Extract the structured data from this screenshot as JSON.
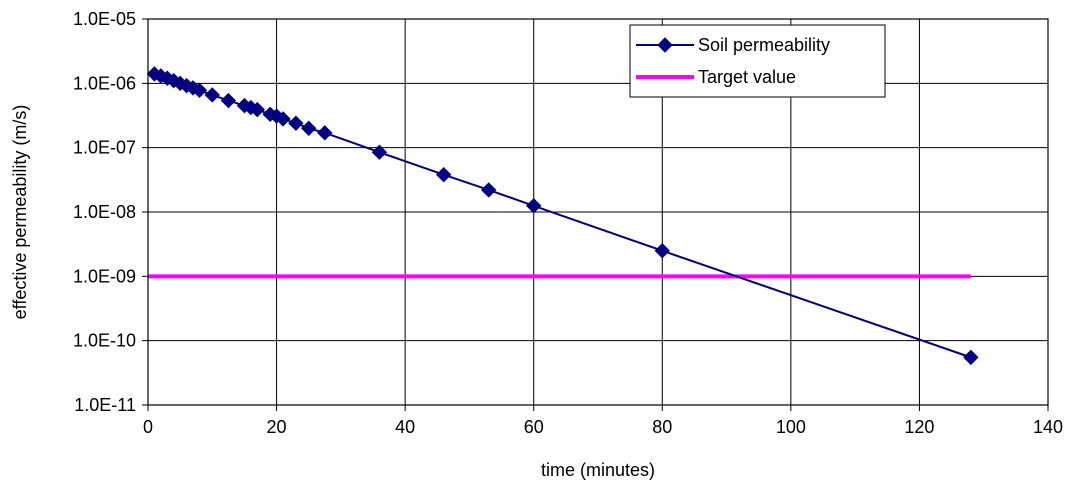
{
  "chart_data": {
    "type": "line",
    "title": "",
    "xlabel": "time (minutes)",
    "ylabel": "effective permeability (m/s)",
    "xlim": [
      0,
      140
    ],
    "x_ticks": [
      0,
      20,
      40,
      60,
      80,
      100,
      120,
      140
    ],
    "x_tick_labels": [
      "0",
      "20",
      "40",
      "60",
      "80",
      "100",
      "120",
      "140"
    ],
    "y_scale": "log",
    "ylim": [
      1e-11,
      1e-05
    ],
    "y_ticks": [
      1e-11,
      1e-10,
      1e-09,
      1e-08,
      1e-07,
      1e-06,
      1e-05
    ],
    "y_tick_labels": [
      "1.0E-11",
      "1.0E-10",
      "1.0E-09",
      "1.0E-08",
      "1.0E-07",
      "1.0E-06",
      "1.0E-05"
    ],
    "grid": true,
    "legend_position": "top-right",
    "series": [
      {
        "name": "Soil permeability",
        "color": "#000080",
        "marker": "diamond",
        "x": [
          1,
          2,
          3,
          4,
          5,
          6,
          7,
          8,
          10,
          12.5,
          15,
          16,
          17,
          19,
          20,
          21,
          23,
          25,
          27.5,
          36,
          46,
          53,
          60,
          80,
          128
        ],
        "y": [
          1.4e-06,
          1.3e-06,
          1.2e-06,
          1.1e-06,
          1e-06,
          9.2e-07,
          8.5e-07,
          7.8e-07,
          6.6e-07,
          5.4e-07,
          4.5e-07,
          4.2e-07,
          3.9e-07,
          3.3e-07,
          3.1e-07,
          2.8e-07,
          2.4e-07,
          2e-07,
          1.7e-07,
          8.5e-08,
          3.8e-08,
          2.2e-08,
          1.25e-08,
          2.5e-09,
          5.5e-11
        ]
      },
      {
        "name": "Target value",
        "color": "#ff00ff",
        "marker": "none",
        "x": [
          0,
          128
        ],
        "y": [
          1e-09,
          1e-09
        ]
      }
    ]
  }
}
